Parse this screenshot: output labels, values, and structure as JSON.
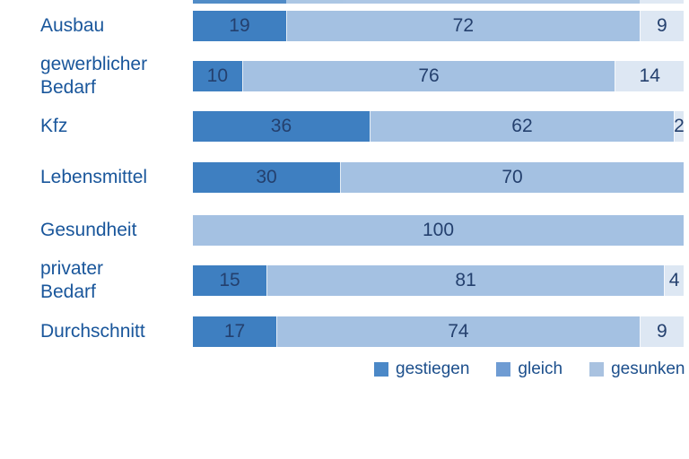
{
  "colors": {
    "gestiegen": "#3e7fc1",
    "gleich": "#a4c1e2",
    "gesunken": "#dde7f3",
    "legend_gestiegen": "#4b88c7",
    "legend_gleich": "#6f9cd3",
    "legend_gesunken": "#a9c2e0",
    "label_text": "#19569b",
    "number_text": "#24406e",
    "background": "#ffffff"
  },
  "top_partial_bar": {
    "segments": [
      {
        "value": 19,
        "color_key": "gestiegen"
      },
      {
        "value": 72,
        "color_key": "gleich"
      },
      {
        "value": 9,
        "color_key": "gesunken"
      }
    ]
  },
  "rows": [
    {
      "label": "Ausbau",
      "segments": [
        {
          "value": 19,
          "color_key": "gestiegen"
        },
        {
          "value": 72,
          "color_key": "gleich"
        },
        {
          "value": 9,
          "color_key": "gesunken"
        }
      ]
    },
    {
      "label": "gewerblicher\nBedarf",
      "segments": [
        {
          "value": 10,
          "color_key": "gestiegen"
        },
        {
          "value": 76,
          "color_key": "gleich"
        },
        {
          "value": 14,
          "color_key": "gesunken"
        }
      ]
    },
    {
      "label": "Kfz",
      "segments": [
        {
          "value": 36,
          "color_key": "gestiegen"
        },
        {
          "value": 62,
          "color_key": "gleich"
        },
        {
          "value": 2,
          "color_key": "gesunken"
        }
      ]
    },
    {
      "label": "Lebensmittel",
      "segments": [
        {
          "value": 30,
          "color_key": "gestiegen"
        },
        {
          "value": 70,
          "color_key": "gleich"
        }
      ]
    },
    {
      "label": "Gesundheit",
      "segments": [
        {
          "value": 100,
          "color_key": "gleich"
        }
      ]
    },
    {
      "label": "privater\nBedarf",
      "segments": [
        {
          "value": 15,
          "color_key": "gestiegen"
        },
        {
          "value": 81,
          "color_key": "gleich"
        },
        {
          "value": 4,
          "color_key": "gesunken"
        }
      ]
    },
    {
      "label": "Durchschnitt",
      "segments": [
        {
          "value": 17,
          "color_key": "gestiegen"
        },
        {
          "value": 74,
          "color_key": "gleich"
        },
        {
          "value": 9,
          "color_key": "gesunken"
        }
      ]
    }
  ],
  "legend": {
    "items": [
      {
        "label": "gestiegen",
        "color_key": "legend_gestiegen"
      },
      {
        "label": "gleich",
        "color_key": "legend_gleich"
      },
      {
        "label": "gesunken",
        "color_key": "legend_gesunken"
      }
    ]
  },
  "chart_data": {
    "type": "bar",
    "orientation": "horizontal",
    "stacked": true,
    "title": "",
    "xlabel": "",
    "ylabel": "",
    "value_unit": "percent",
    "xlim": [
      0,
      100
    ],
    "grid": false,
    "data_labels": "inside-center",
    "legend_position": "bottom-right",
    "categories": [
      "Ausbau",
      "gewerblicher Bedarf",
      "Kfz",
      "Lebensmittel",
      "Gesundheit",
      "privater Bedarf",
      "Durchschnitt"
    ],
    "series": [
      {
        "name": "gestiegen",
        "color": "#3e7fc1",
        "values": [
          19,
          10,
          36,
          30,
          0,
          15,
          17
        ]
      },
      {
        "name": "gleich",
        "color": "#a4c1e2",
        "values": [
          72,
          76,
          62,
          70,
          100,
          81,
          74
        ]
      },
      {
        "name": "gesunken",
        "color": "#dde7f3",
        "values": [
          9,
          14,
          2,
          0,
          0,
          4,
          9
        ]
      }
    ]
  }
}
